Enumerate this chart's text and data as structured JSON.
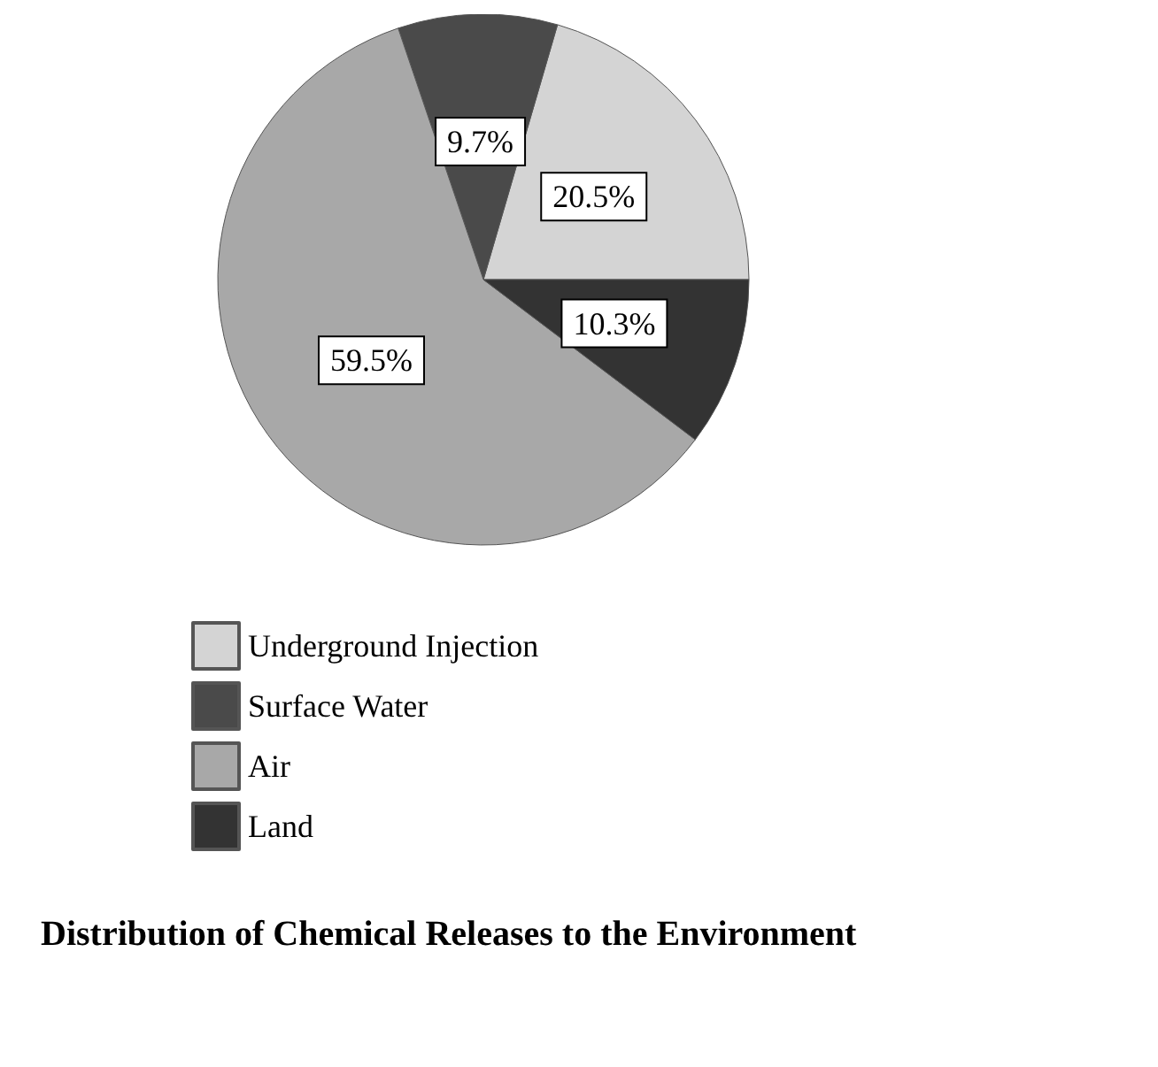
{
  "chart_data": {
    "type": "pie",
    "title": "Distribution of Chemical Releases to the Environment",
    "categories": [
      "Underground Injection",
      "Surface Water",
      "Air",
      "Land"
    ],
    "values": [
      20.5,
      9.7,
      59.5,
      10.3
    ],
    "colors": [
      "#d4d4d4",
      "#4a4a4a",
      "#a8a8a8",
      "#333333"
    ],
    "value_labels": [
      "20.5%",
      "9.7%",
      "59.5%",
      "10.3%"
    ],
    "legend": "bottom"
  }
}
